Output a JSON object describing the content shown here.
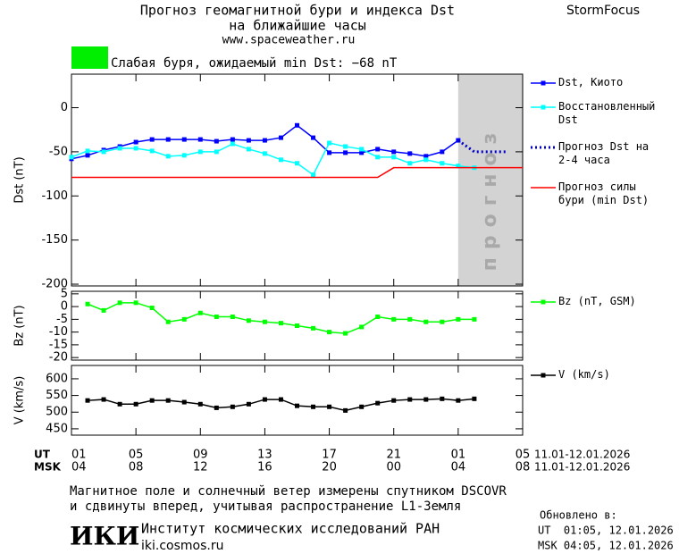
{
  "header": {
    "title": "Прогноз геомагнитной бури и индекса Dst",
    "subtitle": "на ближайшие часы",
    "url": "www.spaceweather.ru",
    "brand": "StormFocus",
    "status_color": "#00ee00",
    "status": "Слабая буря, ожидаемый min Dst: −68 nT"
  },
  "chart_data": [
    {
      "type": "line",
      "ylabel": "Dst (nT)",
      "xlim": [
        "2026-01-11T01:00",
        "2026-01-12T05:00"
      ],
      "ylim": [
        -202,
        38
      ],
      "yticks": [
        0,
        -50,
        -100,
        -150,
        -200
      ],
      "forecast_region": [
        "2026-01-12T01:00",
        "2026-01-12T05:00"
      ],
      "forecast_label": "прогноз",
      "forecast_color": "#d3d3d3",
      "series": [
        {
          "name": "Dst, Киото",
          "color": "#0000ff",
          "marker": true,
          "x": [
            "2026-01-11T01:00",
            "2026-01-11T02:00",
            "2026-01-11T03:00",
            "2026-01-11T04:00",
            "2026-01-11T05:00",
            "2026-01-11T06:00",
            "2026-01-11T07:00",
            "2026-01-11T08:00",
            "2026-01-11T09:00",
            "2026-01-11T10:00",
            "2026-01-11T11:00",
            "2026-01-11T12:00",
            "2026-01-11T13:00",
            "2026-01-11T14:00",
            "2026-01-11T15:00",
            "2026-01-11T16:00",
            "2026-01-11T17:00",
            "2026-01-11T18:00",
            "2026-01-11T19:00",
            "2026-01-11T20:00",
            "2026-01-11T21:00",
            "2026-01-11T22:00",
            "2026-01-11T23:00",
            "2026-01-12T00:00",
            "2026-01-12T01:00"
          ],
          "values": [
            -58,
            -54,
            -48,
            -44,
            -39,
            -36,
            -36,
            -36,
            -36,
            -38,
            -36,
            -37,
            -37,
            -34,
            -20,
            -34,
            -51,
            -51,
            -51,
            -47,
            -50,
            -52,
            -55,
            -50,
            -37
          ]
        },
        {
          "name": "Восстановленный Dst",
          "color": "#00ffff",
          "marker": true,
          "x": [
            "2026-01-11T01:00",
            "2026-01-11T02:00",
            "2026-01-11T03:00",
            "2026-01-11T04:00",
            "2026-01-11T05:00",
            "2026-01-11T06:00",
            "2026-01-11T07:00",
            "2026-01-11T08:00",
            "2026-01-11T09:00",
            "2026-01-11T10:00",
            "2026-01-11T11:00",
            "2026-01-11T12:00",
            "2026-01-11T13:00",
            "2026-01-11T14:00",
            "2026-01-11T15:00",
            "2026-01-11T16:00",
            "2026-01-11T17:00",
            "2026-01-11T18:00",
            "2026-01-11T19:00",
            "2026-01-11T20:00",
            "2026-01-11T21:00",
            "2026-01-11T22:00",
            "2026-01-11T23:00",
            "2026-01-12T00:00",
            "2026-01-12T01:00",
            "2026-01-12T02:00"
          ],
          "values": [
            -56,
            -49,
            -50,
            -46,
            -46,
            -49,
            -55,
            -54,
            -50,
            -50,
            -41,
            -47,
            -52,
            -59,
            -63,
            -76,
            -40,
            -44,
            -47,
            -56,
            -56,
            -63,
            -59,
            -63,
            -66,
            -68
          ]
        },
        {
          "name": "Прогноз Dst на 2-4 часа",
          "color": "#0000cc",
          "dash": true,
          "x": [
            "2026-01-12T01:00",
            "2026-01-12T02:00",
            "2026-01-12T04:00"
          ],
          "values": [
            -37,
            -50,
            -50
          ]
        },
        {
          "name": "Прогноз силы бури (min Dst)",
          "color": "#ff0000",
          "x": [
            "2026-01-11T01:00",
            "2026-01-11T20:00",
            "2026-01-11T21:00",
            "2026-01-12T05:00"
          ],
          "values": [
            -79,
            -79,
            -68,
            -68
          ]
        }
      ]
    },
    {
      "type": "line",
      "ylabel": "Bz (nT)",
      "ylim": [
        -21,
        6
      ],
      "yticks": [
        5,
        0,
        -5,
        -10,
        -15,
        -20
      ],
      "series": [
        {
          "name": "Bz (nT, GSM)",
          "color": "#00ff00",
          "marker": true,
          "x": [
            "2026-01-11T02:00",
            "2026-01-11T03:00",
            "2026-01-11T04:00",
            "2026-01-11T05:00",
            "2026-01-11T06:00",
            "2026-01-11T07:00",
            "2026-01-11T08:00",
            "2026-01-11T09:00",
            "2026-01-11T10:00",
            "2026-01-11T11:00",
            "2026-01-11T12:00",
            "2026-01-11T13:00",
            "2026-01-11T14:00",
            "2026-01-11T15:00",
            "2026-01-11T16:00",
            "2026-01-11T17:00",
            "2026-01-11T18:00",
            "2026-01-11T19:00",
            "2026-01-11T20:00",
            "2026-01-11T21:00",
            "2026-01-11T22:00",
            "2026-01-11T23:00",
            "2026-01-12T00:00",
            "2026-01-12T01:00",
            "2026-01-12T02:00"
          ],
          "values": [
            1,
            -1.5,
            1.5,
            1.5,
            -0.5,
            -6,
            -5,
            -2.5,
            -4,
            -4,
            -5.5,
            -6,
            -6.5,
            -7.5,
            -8.5,
            -10,
            -10.5,
            -8,
            -4,
            -5,
            -5,
            -6,
            -6,
            -5,
            -5
          ]
        }
      ]
    },
    {
      "type": "line",
      "ylabel": "V (km/s)",
      "ylim": [
        431,
        640
      ],
      "yticks": [
        450,
        500,
        550,
        600
      ],
      "xticks": [
        {
          "value": "2026-01-11T01:00",
          "label": "01"
        },
        {
          "value": "2026-01-11T05:00",
          "label": "05"
        },
        {
          "value": "2026-01-11T09:00",
          "label": "09"
        },
        {
          "value": "2026-01-11T13:00",
          "label": "13"
        },
        {
          "value": "2026-01-11T17:00",
          "label": "17"
        },
        {
          "value": "2026-01-11T21:00",
          "label": "21"
        },
        {
          "value": "2026-01-12T01:00",
          "label": "01"
        },
        {
          "value": "2026-01-12T05:00",
          "label": "05"
        }
      ],
      "msk_tick_labels": [
        "04",
        "08",
        "12",
        "16",
        "20",
        "00",
        "04",
        "08"
      ],
      "row_labels": [
        "UT",
        "MSK"
      ],
      "date_ranges": [
        "11.01-12.01.2026",
        "11.01-12.01.2026"
      ],
      "series": [
        {
          "name": "V (km/s)",
          "color": "#000000",
          "marker": true,
          "x": [
            "2026-01-11T02:00",
            "2026-01-11T03:00",
            "2026-01-11T04:00",
            "2026-01-11T05:00",
            "2026-01-11T06:00",
            "2026-01-11T07:00",
            "2026-01-11T08:00",
            "2026-01-11T09:00",
            "2026-01-11T10:00",
            "2026-01-11T11:00",
            "2026-01-11T12:00",
            "2026-01-11T13:00",
            "2026-01-11T14:00",
            "2026-01-11T15:00",
            "2026-01-11T16:00",
            "2026-01-11T17:00",
            "2026-01-11T18:00",
            "2026-01-11T19:00",
            "2026-01-11T20:00",
            "2026-01-11T21:00",
            "2026-01-11T22:00",
            "2026-01-11T23:00",
            "2026-01-12T00:00",
            "2026-01-12T01:00",
            "2026-01-12T02:00"
          ],
          "values": [
            535,
            538,
            524,
            524,
            535,
            535,
            530,
            524,
            513,
            516,
            524,
            538,
            538,
            519,
            516,
            516,
            505,
            516,
            527,
            535,
            538,
            538,
            540,
            535,
            540
          ]
        }
      ]
    }
  ],
  "footer": {
    "note_line1": "Магнитное поле и солнечный ветер измерены спутником DSCOVR",
    "note_line2": "и сдвинуты вперед, учитывая распространение L1-Земля",
    "logo": "ИКИ",
    "institute": "Институт космических исследований РАН",
    "institute_url": "iki.cosmos.ru",
    "updated_label": "Обновлено в:",
    "updated_ut": "UT  01:05, 12.01.2026",
    "updated_msk": "MSK 04:05, 12.01.2026"
  }
}
